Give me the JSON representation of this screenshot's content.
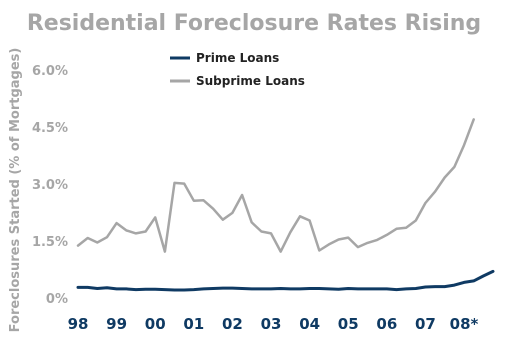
{
  "chart_data": {
    "type": "line",
    "title": "Residential Foreclosure Rates Rising",
    "xlabel": "",
    "ylabel": "Foreclosures Started (% of Mortgages)",
    "ylim": [
      0,
      6.0
    ],
    "yticks": [
      0,
      1.5,
      3.0,
      4.5,
      6.0
    ],
    "ytick_labels": [
      "0%",
      "1.5%",
      "3.0%",
      "4.5%",
      "6.0%"
    ],
    "xlim": [
      1998,
      2008.75
    ],
    "xticks": [
      1998,
      1999,
      2000,
      2001,
      2002,
      2003,
      2004,
      2005,
      2006,
      2007,
      2008
    ],
    "xtick_labels": [
      "98",
      "99",
      "00",
      "01",
      "02",
      "03",
      "04",
      "05",
      "06",
      "07",
      "08*"
    ],
    "grid": false,
    "legend": "top-center",
    "colors": {
      "prime": "#0f3a63",
      "subprime": "#a6a6a6"
    },
    "series": [
      {
        "name": "Prime Loans",
        "key": "prime",
        "x": [
          1998.0,
          1998.25,
          1998.5,
          1998.75,
          1999.0,
          1999.25,
          1999.5,
          1999.75,
          2000.0,
          2000.25,
          2000.5,
          2000.75,
          2001.0,
          2001.25,
          2001.5,
          2001.75,
          2002.0,
          2002.25,
          2002.5,
          2002.75,
          2003.0,
          2003.25,
          2003.5,
          2003.75,
          2004.0,
          2004.25,
          2004.5,
          2004.75,
          2005.0,
          2005.25,
          2005.5,
          2005.75,
          2006.0,
          2006.25,
          2006.5,
          2006.75,
          2007.0,
          2007.25,
          2007.5,
          2007.75,
          2008.0,
          2008.25,
          2008.5,
          2008.75
        ],
        "y": [
          0.28,
          0.28,
          0.25,
          0.27,
          0.24,
          0.24,
          0.22,
          0.23,
          0.23,
          0.22,
          0.21,
          0.21,
          0.22,
          0.24,
          0.25,
          0.26,
          0.26,
          0.25,
          0.24,
          0.24,
          0.24,
          0.25,
          0.24,
          0.24,
          0.25,
          0.25,
          0.24,
          0.23,
          0.25,
          0.24,
          0.24,
          0.24,
          0.24,
          0.22,
          0.24,
          0.25,
          0.29,
          0.3,
          0.3,
          0.34,
          0.41,
          0.45,
          0.58,
          0.7
        ]
      },
      {
        "name": "Subprime Loans",
        "key": "subprime",
        "x": [
          1998.0,
          1998.25,
          1998.5,
          1998.75,
          1999.0,
          1999.25,
          1999.5,
          1999.75,
          2000.0,
          2000.25,
          2000.5,
          2000.75,
          2001.0,
          2001.25,
          2001.5,
          2001.75,
          2002.0,
          2002.25,
          2002.5,
          2002.75,
          2003.0,
          2003.25,
          2003.5,
          2003.75,
          2004.0,
          2004.25,
          2004.5,
          2004.75,
          2005.0,
          2005.25,
          2005.5,
          2005.75,
          2006.0,
          2006.25,
          2006.5,
          2006.75,
          2007.0,
          2007.25,
          2007.5,
          2007.75,
          2008.0,
          2008.25,
          2008.5,
          2008.75
        ],
        "y": [
          1.38,
          1.58,
          1.46,
          1.6,
          1.97,
          1.78,
          1.7,
          1.75,
          2.12,
          1.22,
          3.03,
          3.01,
          2.56,
          2.57,
          2.35,
          2.06,
          2.24,
          2.71,
          1.99,
          1.75,
          1.7,
          1.22,
          1.73,
          2.15,
          2.04,
          1.25,
          1.41,
          1.54,
          1.59,
          1.34,
          1.45,
          1.53,
          1.66,
          1.82,
          1.85,
          2.04,
          2.5,
          2.8,
          3.17,
          3.45,
          4.02,
          4.7,
          null,
          null
        ]
      }
    ]
  }
}
